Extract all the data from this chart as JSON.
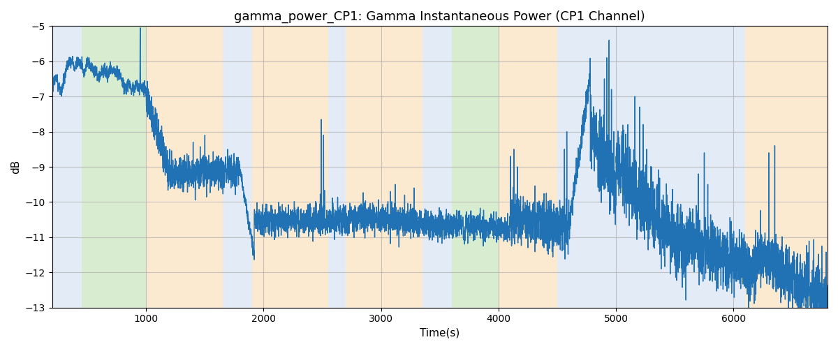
{
  "title": "gamma_power_CP1: Gamma Instantaneous Power (CP1 Channel)",
  "xlabel": "Time(s)",
  "ylabel": "dB",
  "xlim": [
    200,
    6800
  ],
  "ylim": [
    -13,
    -5
  ],
  "yticks": [
    -13,
    -12,
    -11,
    -10,
    -9,
    -8,
    -7,
    -6,
    -5
  ],
  "bg_regions": [
    {
      "xmin": 200,
      "xmax": 450,
      "color": "#aec6e8",
      "alpha": 0.35
    },
    {
      "xmin": 450,
      "xmax": 1000,
      "color": "#90c978",
      "alpha": 0.35
    },
    {
      "xmin": 1000,
      "xmax": 1650,
      "color": "#f5c07a",
      "alpha": 0.35
    },
    {
      "xmin": 1650,
      "xmax": 1900,
      "color": "#aec6e8",
      "alpha": 0.35
    },
    {
      "xmin": 1900,
      "xmax": 2550,
      "color": "#f5c07a",
      "alpha": 0.35
    },
    {
      "xmin": 2550,
      "xmax": 2700,
      "color": "#aec6e8",
      "alpha": 0.35
    },
    {
      "xmin": 2700,
      "xmax": 3350,
      "color": "#f5c07a",
      "alpha": 0.35
    },
    {
      "xmin": 3350,
      "xmax": 3600,
      "color": "#aec6e8",
      "alpha": 0.35
    },
    {
      "xmin": 3600,
      "xmax": 4000,
      "color": "#90c978",
      "alpha": 0.35
    },
    {
      "xmin": 4000,
      "xmax": 4500,
      "color": "#f5c07a",
      "alpha": 0.35
    },
    {
      "xmin": 4500,
      "xmax": 6100,
      "color": "#aec6e8",
      "alpha": 0.35
    },
    {
      "xmin": 6100,
      "xmax": 6800,
      "color": "#f5c07a",
      "alpha": 0.35
    }
  ],
  "line_color": "#2171b5",
  "line_width": 1.0,
  "grid_color": "#b0b0b0",
  "grid_alpha": 0.7,
  "title_fontsize": 13,
  "axis_fontsize": 11,
  "tick_fontsize": 10
}
